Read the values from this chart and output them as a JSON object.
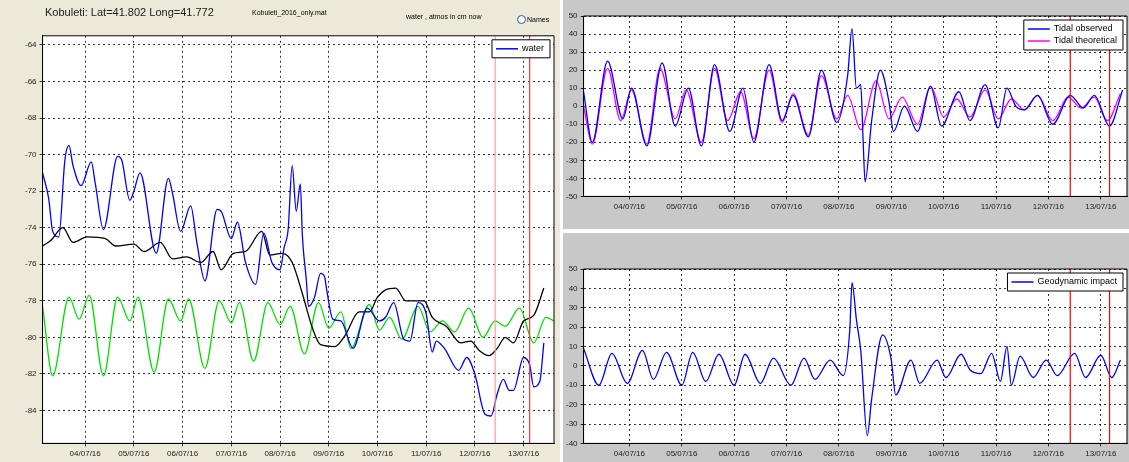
{
  "chart_data": [
    {
      "type": "line",
      "title": "Kobuleti: Lat=41.802 Long=41.772",
      "subtitle": "Kobuleti_2016_only.mat",
      "annotations": [
        "water , atmos in cm now",
        "Names"
      ],
      "xlim": [
        "2016-07-03T03:00",
        "2016-07-13T15:00"
      ],
      "ylim": [
        -85.8,
        -63.5
      ],
      "xticks": [
        {
          "value": "2016-07-04",
          "label": "04/07/16"
        },
        {
          "value": "2016-07-05",
          "label": "05/07/16"
        },
        {
          "value": "2016-07-06",
          "label": "06/07/16"
        },
        {
          "value": "2016-07-07",
          "label": "07/07/16"
        },
        {
          "value": "2016-07-08",
          "label": "08/07/16"
        },
        {
          "value": "2016-07-09",
          "label": "09/07/16"
        },
        {
          "value": "2016-07-10",
          "label": "10/07/16"
        },
        {
          "value": "2016-07-11",
          "label": "11/07/16"
        },
        {
          "value": "2016-07-12",
          "label": "12/07/16"
        },
        {
          "value": "2016-07-13",
          "label": "13/07/16"
        }
      ],
      "yticks": [
        -64,
        -66,
        -68,
        -70,
        -72,
        -74,
        -76,
        -78,
        -80,
        -82,
        -84
      ],
      "grid": true,
      "legend": "top right",
      "ref_lines": [
        {
          "axis": "x",
          "value": "2016-07-12T10:00",
          "color": "#ff9999"
        },
        {
          "axis": "x",
          "value": "2016-07-13T03:00",
          "color": "#ff3333"
        }
      ],
      "series": [
        {
          "name": "water",
          "color": "#0000ff",
          "x": [
            "2016-07-03T03:00",
            "2016-07-03T06:00",
            "2016-07-03T08:00",
            "2016-07-03T11:00",
            "2016-07-03T14:00",
            "2016-07-03T16:00",
            "2016-07-03T18:00",
            "2016-07-03T22:00",
            "2016-07-04T03:00",
            "2016-07-04T05:00",
            "2016-07-04T09:00",
            "2016-07-04T16:00",
            "2016-07-04T18:00",
            "2016-07-04T22:00",
            "2016-07-05T00:00",
            "2016-07-05T03:00",
            "2016-07-05T11:00",
            "2016-07-05T17:00",
            "2016-07-05T19:00",
            "2016-07-05T23:00",
            "2016-07-06T04:00",
            "2016-07-06T07:00",
            "2016-07-06T11:00",
            "2016-07-06T17:00",
            "2016-07-06T19:00",
            "2016-07-07T00:00",
            "2016-07-07T03:00",
            "2016-07-07T07:00",
            "2016-07-07T12:00",
            "2016-07-07T16:00",
            "2016-07-07T20:00",
            "2016-07-08T00:00",
            "2016-07-08T02:00",
            "2016-07-08T04:00",
            "2016-07-08T06:00",
            "2016-07-08T08:00",
            "2016-07-08T10:00",
            "2016-07-08T11:00",
            "2016-07-08T13:00",
            "2016-07-08T14:00",
            "2016-07-08T17:00",
            "2016-07-08T20:00",
            "2016-07-08T22:00",
            "2016-07-08T23:00",
            "2016-07-09T02:00",
            "2016-07-09T06:00",
            "2016-07-09T12:00",
            "2016-07-09T19:00",
            "2016-07-10T01:00",
            "2016-07-10T04:00",
            "2016-07-10T08:00",
            "2016-07-10T13:00",
            "2016-07-10T16:00",
            "2016-07-10T20:00",
            "2016-07-11T00:00",
            "2016-07-11T03:00",
            "2016-07-11T05:00",
            "2016-07-11T09:00",
            "2016-07-11T16:00",
            "2016-07-11T20:00",
            "2016-07-12T00:00",
            "2016-07-12T05:00",
            "2016-07-12T08:00",
            "2016-07-12T11:00",
            "2016-07-12T14:00",
            "2016-07-12T17:00",
            "2016-07-12T19:00",
            "2016-07-13T00:00",
            "2016-07-13T03:00",
            "2016-07-13T05:00",
            "2016-07-13T08:00",
            "2016-07-13T10:00"
          ],
          "values": [
            -71.0,
            -72.4,
            -74.2,
            -74.5,
            -70.3,
            -69.5,
            -70.6,
            -71.7,
            -70.4,
            -71.6,
            -74.1,
            -70.1,
            -70.3,
            -72.5,
            -72.0,
            -71.0,
            -75.4,
            -71.3,
            -72.1,
            -74.2,
            -72.8,
            -74.8,
            -76.9,
            -73.0,
            -73.1,
            -74.6,
            -73.7,
            -75.9,
            -77.1,
            -74.3,
            -75.9,
            -76.3,
            -75.1,
            -74.1,
            -70.6,
            -73.1,
            -71.6,
            -74.4,
            -76.9,
            -78.3,
            -77.8,
            -76.5,
            -76.7,
            -77.4,
            -79.0,
            -79.1,
            -80.6,
            -78.4,
            -79.1,
            -78.9,
            -78.1,
            -80.1,
            -80.2,
            -78.1,
            -78.7,
            -80.8,
            -80.2,
            -80.6,
            -81.8,
            -81.1,
            -82.0,
            -84.2,
            -84.3,
            -83.1,
            -82.3,
            -82.9,
            -82.9,
            -81.1,
            -81.5,
            -82.7,
            -82.4,
            -80.3
          ]
        },
        {
          "color": "#000000",
          "x": [
            "2016-07-03T03:00",
            "2016-07-03T07:00",
            "2016-07-03T13:00",
            "2016-07-03T18:00",
            "2016-07-04T01:00",
            "2016-07-04T10:00",
            "2016-07-04T15:00",
            "2016-07-05T00:00",
            "2016-07-05T05:00",
            "2016-07-05T13:00",
            "2016-07-05T19:00",
            "2016-07-06T02:00",
            "2016-07-06T09:00",
            "2016-07-06T15:00",
            "2016-07-06T19:00",
            "2016-07-07T01:00",
            "2016-07-07T07:00",
            "2016-07-07T15:00",
            "2016-07-07T19:00",
            "2016-07-08T01:00",
            "2016-07-08T06:00",
            "2016-07-08T11:00",
            "2016-07-08T16:00",
            "2016-07-08T20:00",
            "2016-07-09T03:00",
            "2016-07-09T08:00",
            "2016-07-09T15:00",
            "2016-07-09T20:00",
            "2016-07-10T00:00",
            "2016-07-10T04:00",
            "2016-07-10T09:00",
            "2016-07-10T14:00",
            "2016-07-10T23:00",
            "2016-07-11T03:00",
            "2016-07-11T10:00",
            "2016-07-11T17:00",
            "2016-07-11T22:00",
            "2016-07-12T02:00",
            "2016-07-12T07:00",
            "2016-07-12T11:00",
            "2016-07-12T15:00",
            "2016-07-12T19:00",
            "2016-07-13T00:00",
            "2016-07-13T05:00",
            "2016-07-13T10:00"
          ],
          "values": [
            -75.0,
            -74.7,
            -74.0,
            -74.8,
            -74.5,
            -74.6,
            -75.0,
            -74.9,
            -75.3,
            -74.8,
            -75.7,
            -75.6,
            -75.9,
            -75.3,
            -76.3,
            -75.4,
            -75.3,
            -74.2,
            -75.5,
            -75.4,
            -75.9,
            -77.6,
            -79.5,
            -80.4,
            -80.5,
            -79.9,
            -78.6,
            -78.6,
            -77.8,
            -77.4,
            -77.3,
            -78.0,
            -78.0,
            -78.9,
            -79.4,
            -80.3,
            -80.2,
            -80.7,
            -81.0,
            -80.6,
            -80.0,
            -80.3,
            -79.1,
            -78.8,
            -77.3
          ]
        },
        {
          "color": "#00e000",
          "x": [
            "2016-07-03T03:00",
            "2016-07-03T08:00",
            "2016-07-03T16:00",
            "2016-07-03T21:00",
            "2016-07-04T02:00",
            "2016-07-04T09:00",
            "2016-07-04T16:00",
            "2016-07-04T22:00",
            "2016-07-05T02:00",
            "2016-07-05T10:00",
            "2016-07-05T17:00",
            "2016-07-05T23:00",
            "2016-07-06T03:00",
            "2016-07-06T11:00",
            "2016-07-06T18:00",
            "2016-07-07T00:00",
            "2016-07-07T04:00",
            "2016-07-07T11:00",
            "2016-07-07T18:00",
            "2016-07-08T00:00",
            "2016-07-08T05:00",
            "2016-07-08T12:00",
            "2016-07-08T19:00",
            "2016-07-09T00:00",
            "2016-07-09T06:00",
            "2016-07-09T11:00",
            "2016-07-09T20:00",
            "2016-07-10T01:00",
            "2016-07-10T06:00",
            "2016-07-10T12:00",
            "2016-07-10T20:00",
            "2016-07-11T02:00",
            "2016-07-11T08:00",
            "2016-07-11T14:00",
            "2016-07-11T21:00",
            "2016-07-12T04:00",
            "2016-07-12T10:00",
            "2016-07-12T15:00",
            "2016-07-12T22:00",
            "2016-07-13T05:00",
            "2016-07-13T11:00",
            "2016-07-13T15:00"
          ],
          "values": [
            -78.3,
            -82.1,
            -77.8,
            -79.0,
            -77.7,
            -82.1,
            -77.8,
            -79.1,
            -77.8,
            -81.9,
            -77.9,
            -79.1,
            -77.9,
            -81.7,
            -78.0,
            -79.2,
            -78.1,
            -81.3,
            -78.1,
            -79.3,
            -78.3,
            -80.9,
            -78.1,
            -79.5,
            -78.6,
            -80.6,
            -78.2,
            -79.6,
            -78.9,
            -80.1,
            -78.3,
            -79.7,
            -79.1,
            -79.7,
            -78.4,
            -80.0,
            -79.1,
            -79.4,
            -78.4,
            -80.3,
            -78.9,
            -79.1
          ]
        }
      ]
    },
    {
      "type": "line",
      "xlim": [
        "2016-07-03T03:00",
        "2016-07-13T12:00"
      ],
      "ylim": [
        -50,
        50
      ],
      "xticks": [
        {
          "value": "2016-07-04",
          "label": "04/07/16"
        },
        {
          "value": "2016-07-05",
          "label": "05/07/16"
        },
        {
          "value": "2016-07-06",
          "label": "06/07/16"
        },
        {
          "value": "2016-07-07",
          "label": "07/07/16"
        },
        {
          "value": "2016-07-08",
          "label": "08/07/16"
        },
        {
          "value": "2016-07-09",
          "label": "09/07/16"
        },
        {
          "value": "2016-07-10",
          "label": "10/07/16"
        },
        {
          "value": "2016-07-11",
          "label": "11/07/16"
        },
        {
          "value": "2016-07-12",
          "label": "12/07/16"
        },
        {
          "value": "2016-07-13",
          "label": "13/07/16"
        }
      ],
      "yticks": [
        -50,
        -40,
        -30,
        -20,
        -10,
        0,
        10,
        20,
        30,
        40,
        50
      ],
      "grid": true,
      "legend": "top right",
      "ref_lines": [
        {
          "axis": "x",
          "value": "2016-07-12T10:00",
          "color": "#ff0000"
        },
        {
          "axis": "x",
          "value": "2016-07-13T04:00",
          "color": "#ff0000"
        }
      ],
      "series": [
        {
          "name": "Tidal observed",
          "color": "#0000ff",
          "x": [
            "2016-07-03T03:00",
            "2016-07-03T07:00",
            "2016-07-03T14:00",
            "2016-07-03T21:00",
            "2016-07-04T01:00",
            "2016-07-04T08:00",
            "2016-07-04T15:00",
            "2016-07-04T21:00",
            "2016-07-05T03:00",
            "2016-07-05T09:00",
            "2016-07-05T15:00",
            "2016-07-05T22:00",
            "2016-07-06T04:00",
            "2016-07-06T09:00",
            "2016-07-06T16:00",
            "2016-07-06T22:00",
            "2016-07-07T03:00",
            "2016-07-07T10:00",
            "2016-07-07T16:00",
            "2016-07-07T23:00",
            "2016-07-08T04:00",
            "2016-07-08T06:00",
            "2016-07-08T08:00",
            "2016-07-08T10:00",
            "2016-07-08T11:00",
            "2016-07-08T12:00",
            "2016-07-08T15:00",
            "2016-07-08T19:00",
            "2016-07-08T23:00",
            "2016-07-09T01:00",
            "2016-07-09T06:00",
            "2016-07-09T12:00",
            "2016-07-09T18:00",
            "2016-07-09T23:00",
            "2016-07-10T07:00",
            "2016-07-10T12:00",
            "2016-07-10T19:00",
            "2016-07-11T01:00",
            "2016-07-11T05:00",
            "2016-07-11T09:00",
            "2016-07-11T13:00",
            "2016-07-11T19:00",
            "2016-07-12T02:00",
            "2016-07-12T10:00",
            "2016-07-12T16:00",
            "2016-07-12T21:00",
            "2016-07-13T04:00",
            "2016-07-13T10:00"
          ],
          "values": [
            8,
            -20,
            25,
            -7,
            10,
            -22,
            24,
            -11,
            10,
            -22,
            23,
            -14,
            10,
            -20,
            23,
            -8,
            6,
            -17,
            20,
            -9,
            17,
            43,
            10,
            12,
            -16,
            -42,
            -8,
            20,
            2,
            -14,
            0,
            -14,
            11,
            -11,
            8,
            -8,
            12,
            -12,
            10,
            0,
            -2,
            6,
            -10,
            6,
            -1,
            6,
            -11,
            9
          ]
        },
        {
          "name": "Tidal theoretical",
          "color": "#ff00ff",
          "x": [
            "2016-07-03T03:00",
            "2016-07-03T07:00",
            "2016-07-03T14:00",
            "2016-07-03T20:00",
            "2016-07-04T01:00",
            "2016-07-04T08:00",
            "2016-07-04T14:00",
            "2016-07-04T21:00",
            "2016-07-05T02:00",
            "2016-07-05T09:00",
            "2016-07-05T15:00",
            "2016-07-05T21:00",
            "2016-07-06T03:00",
            "2016-07-06T09:00",
            "2016-07-06T16:00",
            "2016-07-06T22:00",
            "2016-07-07T03:00",
            "2016-07-07T10:00",
            "2016-07-07T16:00",
            "2016-07-07T23:00",
            "2016-07-08T04:00",
            "2016-07-08T10:00",
            "2016-07-08T17:00",
            "2016-07-08T23:00",
            "2016-07-09T05:00",
            "2016-07-09T12:00",
            "2016-07-09T18:00",
            "2016-07-10T00:00",
            "2016-07-10T06:00",
            "2016-07-10T12:00",
            "2016-07-10T19:00",
            "2016-07-11T01:00",
            "2016-07-11T07:00",
            "2016-07-11T13:00",
            "2016-07-11T19:00",
            "2016-07-12T02:00",
            "2016-07-12T09:00",
            "2016-07-12T15:00",
            "2016-07-12T21:00",
            "2016-07-13T03:00",
            "2016-07-13T09:00"
          ],
          "values": [
            0,
            -21,
            21,
            -8,
            9,
            -21,
            21,
            -7,
            9,
            -20,
            21,
            -8,
            8,
            -18,
            20,
            -9,
            7,
            -16,
            17,
            -7,
            6,
            -13,
            14,
            -7,
            5,
            -10,
            11,
            -6,
            4,
            -6,
            9,
            -7,
            4,
            -2,
            6,
            -8,
            5,
            -1,
            5,
            -8,
            7
          ]
        }
      ]
    },
    {
      "type": "line",
      "xlim": [
        "2016-07-03T03:00",
        "2016-07-13T12:00"
      ],
      "ylim": [
        -40,
        50
      ],
      "xticks": [
        {
          "value": "2016-07-04",
          "label": "04/07/16"
        },
        {
          "value": "2016-07-05",
          "label": "05/07/16"
        },
        {
          "value": "2016-07-06",
          "label": "06/07/16"
        },
        {
          "value": "2016-07-07",
          "label": "07/07/16"
        },
        {
          "value": "2016-07-08",
          "label": "08/07/16"
        },
        {
          "value": "2016-07-09",
          "label": "09/07/16"
        },
        {
          "value": "2016-07-10",
          "label": "10/07/16"
        },
        {
          "value": "2016-07-11",
          "label": "11/07/16"
        },
        {
          "value": "2016-07-12",
          "label": "12/07/16"
        },
        {
          "value": "2016-07-13",
          "label": "13/07/16"
        }
      ],
      "yticks": [
        -40,
        -30,
        -20,
        -10,
        0,
        10,
        20,
        30,
        40,
        50
      ],
      "grid": true,
      "legend": "top right",
      "ref_lines": [
        {
          "axis": "x",
          "value": "2016-07-12T10:00",
          "color": "#ff0000"
        },
        {
          "axis": "x",
          "value": "2016-07-13T04:00",
          "color": "#ff0000"
        }
      ],
      "series": [
        {
          "name": "Geodynamic impact",
          "color": "#0000ff",
          "x": [
            "2016-07-03T03:00",
            "2016-07-03T10:00",
            "2016-07-03T16:00",
            "2016-07-03T23:00",
            "2016-07-04T06:00",
            "2016-07-04T11:00",
            "2016-07-04T17:00",
            "2016-07-05T00:00",
            "2016-07-05T05:00",
            "2016-07-05T11:00",
            "2016-07-05T17:00",
            "2016-07-06T00:00",
            "2016-07-06T05:00",
            "2016-07-06T12:00",
            "2016-07-06T18:00",
            "2016-07-07T02:00",
            "2016-07-07T08:00",
            "2016-07-07T13:00",
            "2016-07-07T20:00",
            "2016-07-08T02:00",
            "2016-07-08T05:00",
            "2016-07-08T06:00",
            "2016-07-08T08:00",
            "2016-07-08T10:00",
            "2016-07-08T13:00",
            "2016-07-08T15:00",
            "2016-07-08T20:00",
            "2016-07-09T00:00",
            "2016-07-09T02:00",
            "2016-07-09T09:00",
            "2016-07-09T13:00",
            "2016-07-09T21:00",
            "2016-07-10T01:00",
            "2016-07-10T08:00",
            "2016-07-10T12:00",
            "2016-07-10T17:00",
            "2016-07-10T22:00",
            "2016-07-11T02:00",
            "2016-07-11T05:00",
            "2016-07-11T07:00",
            "2016-07-11T11:00",
            "2016-07-11T17:00",
            "2016-07-11T23:00",
            "2016-07-12T04:00",
            "2016-07-12T12:00",
            "2016-07-12T17:00",
            "2016-07-13T00:00",
            "2016-07-13T05:00",
            "2016-07-13T09:00"
          ],
          "values": [
            9,
            -10,
            6.5,
            -9,
            8,
            -7,
            7,
            -10,
            7,
            -8,
            6,
            -10,
            6,
            -9,
            4,
            -10,
            4,
            -7,
            3,
            -5,
            19,
            43,
            24,
            8,
            -36,
            -17,
            16,
            3,
            -15,
            3,
            -9,
            3,
            -6,
            6,
            -2,
            -4,
            6.5,
            -8,
            10,
            -10,
            5,
            -6,
            3,
            -5,
            6.5,
            -6,
            5.5,
            -6,
            3
          ]
        }
      ]
    }
  ]
}
